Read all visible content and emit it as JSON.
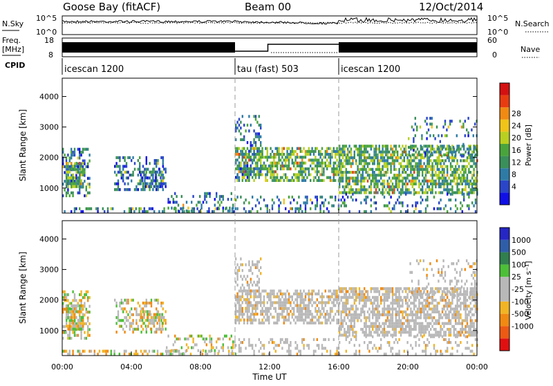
{
  "header": {
    "station": "Goose Bay (fitACF)",
    "beam": "Beam 00",
    "date": "12/Oct/2014"
  },
  "labels": {
    "nsky": "N.Sky",
    "nsearch": "N.Search",
    "freq_line1": "Freq.",
    "freq_line2": "[MHz]",
    "nave": "Nave",
    "cpid": "CPID"
  },
  "noise_panel": {
    "left_ticks": [
      "10^5",
      "10^0"
    ],
    "right_ticks": [
      "10^5",
      "10^0"
    ]
  },
  "freq_panel": {
    "left_ticks": [
      "18",
      "8"
    ],
    "right_ticks": [
      "60",
      "0"
    ]
  },
  "cpid_segments": [
    {
      "start_hour": 0,
      "name": "icescan 1200"
    },
    {
      "start_hour": 10,
      "name": "tau (fast) 503"
    },
    {
      "start_hour": 16,
      "name": "icescan 1200"
    }
  ],
  "chart_data": {
    "type": "heatmap",
    "xlabel": "Time UT",
    "x_ticks": [
      "00:00",
      "04:00",
      "08:00",
      "12:00",
      "16:00",
      "20:00",
      "00:00"
    ],
    "xlim_hours": [
      0,
      24
    ],
    "ylabel": "Slant Range [km]",
    "y_ticks": [
      1000,
      2000,
      3000,
      4000
    ],
    "ylim_km": [
      180,
      4600
    ],
    "mode_changes_hours": [
      10,
      16
    ],
    "echo_regions": [
      {
        "t0": 0.0,
        "t1": 1.6,
        "r0": 700,
        "r1": 2300,
        "density": 0.45
      },
      {
        "t0": 0.2,
        "t1": 1.2,
        "r0": 1000,
        "r1": 1800,
        "density": 0.7
      },
      {
        "t0": 3.0,
        "t1": 5.8,
        "r0": 900,
        "r1": 2000,
        "density": 0.35
      },
      {
        "t0": 4.5,
        "t1": 6.0,
        "r0": 1000,
        "r1": 1600,
        "density": 0.5
      },
      {
        "t0": 6.0,
        "t1": 10.0,
        "r0": 200,
        "r1": 800,
        "density": 0.25
      },
      {
        "t0": 0.0,
        "t1": 10.0,
        "r0": 180,
        "r1": 330,
        "density": 0.35
      },
      {
        "t0": 10.0,
        "t1": 16.0,
        "r0": 1200,
        "r1": 2300,
        "density": 0.6
      },
      {
        "t0": 10.0,
        "t1": 11.5,
        "r0": 1300,
        "r1": 3300,
        "density": 0.3
      },
      {
        "t0": 10.0,
        "t1": 16.0,
        "r0": 180,
        "r1": 700,
        "density": 0.25
      },
      {
        "t0": 16.0,
        "t1": 24.0,
        "r0": 800,
        "r1": 2400,
        "density": 0.65
      },
      {
        "t0": 16.0,
        "t1": 24.0,
        "r0": 180,
        "r1": 800,
        "density": 0.2
      },
      {
        "t0": 20.0,
        "t1": 24.0,
        "r0": 2000,
        "r1": 3300,
        "density": 0.15
      }
    ],
    "power_scale": {
      "label": "Power [dB]",
      "ticks": [
        "4",
        "8",
        "12",
        "16",
        "20",
        "24",
        "28"
      ],
      "colors": [
        "#1010e6",
        "#2a46c8",
        "#2e7ba6",
        "#3a8f5a",
        "#49a43c",
        "#b8d020",
        "#f0c418",
        "#f08a12",
        "#e83c10",
        "#d41010"
      ]
    },
    "velocity_scale": {
      "label": "Velocity [m s⁻¹]",
      "ticks": [
        "1000",
        "500",
        "100",
        "25",
        "-25",
        "-100",
        "-500",
        "-1000"
      ],
      "colors": [
        "#2626c4",
        "#2f5ea8",
        "#317e4e",
        "#4cbf38",
        "#b8b8b8",
        "#b8b8b8",
        "#f2b424",
        "#f08a12",
        "#ec5a14",
        "#e01010"
      ]
    }
  }
}
